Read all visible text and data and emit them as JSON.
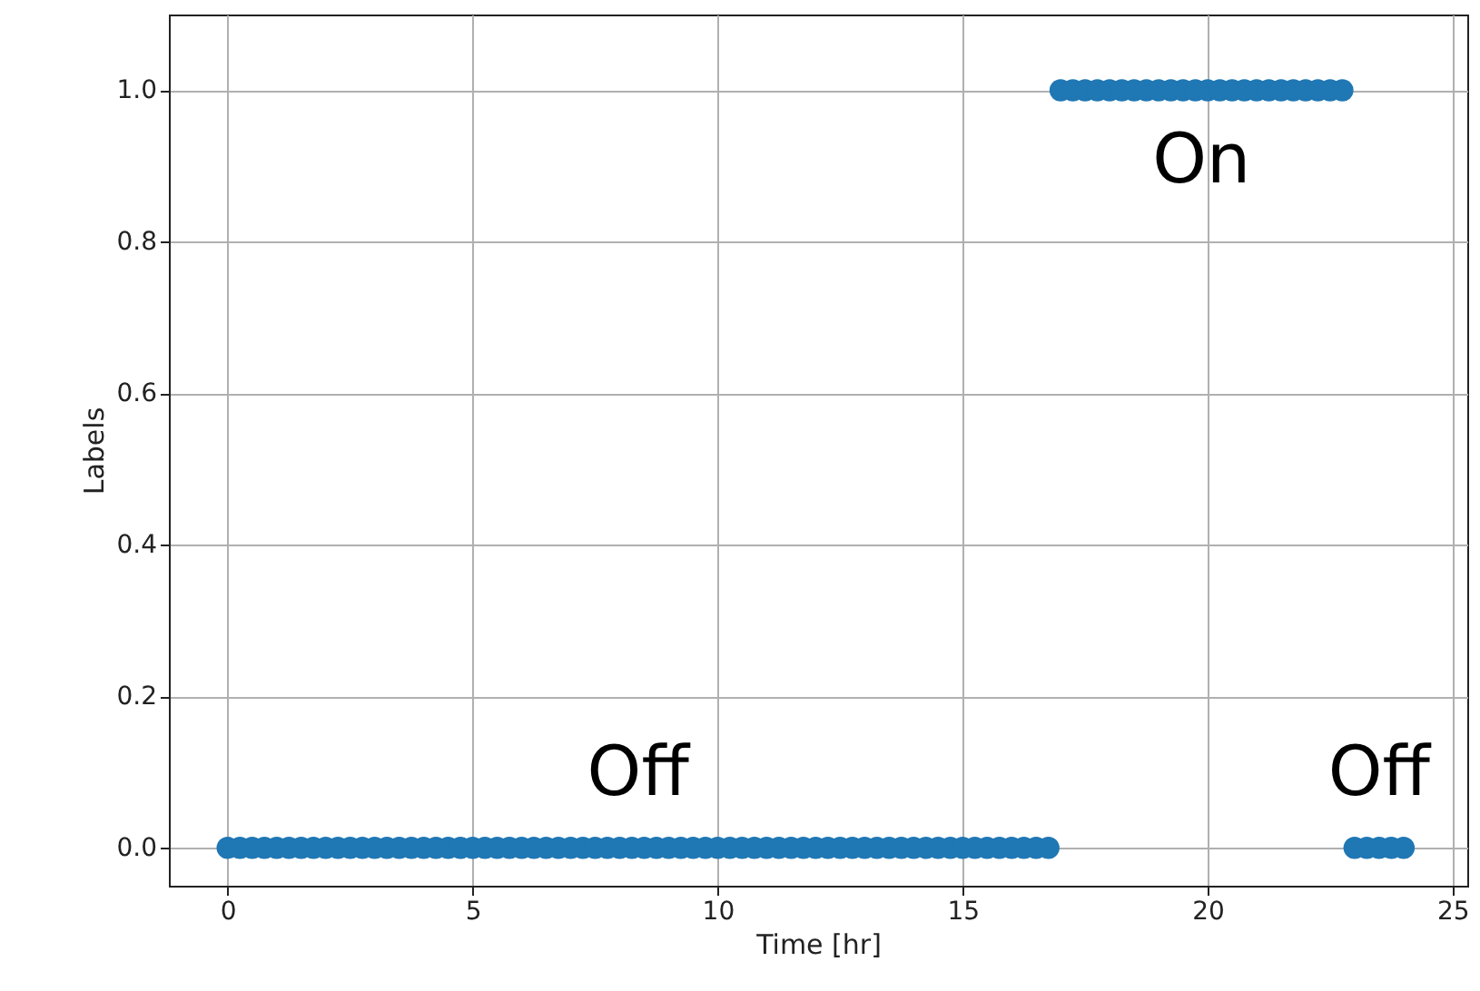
{
  "chart_data": {
    "type": "scatter",
    "xlabel": "Time [hr]",
    "ylabel": "Labels",
    "x": [
      0,
      0.25,
      0.5,
      0.75,
      1,
      1.25,
      1.5,
      1.75,
      2,
      2.25,
      2.5,
      2.75,
      3,
      3.25,
      3.5,
      3.75,
      4,
      4.25,
      4.5,
      4.75,
      5,
      5.25,
      5.5,
      5.75,
      6,
      6.25,
      6.5,
      6.75,
      7,
      7.25,
      7.5,
      7.75,
      8,
      8.25,
      8.5,
      8.75,
      9,
      9.25,
      9.5,
      9.75,
      10,
      10.25,
      10.5,
      10.75,
      11,
      11.25,
      11.5,
      11.75,
      12,
      12.25,
      12.5,
      12.75,
      13,
      13.25,
      13.5,
      13.75,
      14,
      14.25,
      14.5,
      14.75,
      15,
      15.25,
      15.5,
      15.75,
      16,
      16.25,
      16.5,
      16.75,
      17,
      17.25,
      17.5,
      17.75,
      18,
      18.25,
      18.5,
      18.75,
      19,
      19.25,
      19.5,
      19.75,
      20,
      20.25,
      20.5,
      20.75,
      21,
      21.25,
      21.5,
      21.75,
      22,
      22.25,
      22.5,
      22.75,
      23,
      23.25,
      23.5,
      23.75,
      24
    ],
    "series": [
      {
        "color": "#1f77b4",
        "values": [
          0,
          0,
          0,
          0,
          0,
          0,
          0,
          0,
          0,
          0,
          0,
          0,
          0,
          0,
          0,
          0,
          0,
          0,
          0,
          0,
          0,
          0,
          0,
          0,
          0,
          0,
          0,
          0,
          0,
          0,
          0,
          0,
          0,
          0,
          0,
          0,
          0,
          0,
          0,
          0,
          0,
          0,
          0,
          0,
          0,
          0,
          0,
          0,
          0,
          0,
          0,
          0,
          0,
          0,
          0,
          0,
          0,
          0,
          0,
          0,
          0,
          0,
          0,
          0,
          0,
          0,
          0,
          0,
          1,
          1,
          1,
          1,
          1,
          1,
          1,
          1,
          1,
          1,
          1,
          1,
          1,
          1,
          1,
          1,
          1,
          1,
          1,
          1,
          1,
          1,
          1,
          1,
          0,
          0,
          0,
          0,
          0
        ]
      }
    ],
    "xlim": [
      -1.2,
      25.3
    ],
    "ylim": [
      -0.05,
      1.1
    ],
    "xticks": [
      0,
      5,
      10,
      15,
      20,
      25
    ],
    "yticks": [
      {
        "value": 0,
        "label": "0.0"
      },
      {
        "value": 0.2,
        "label": "0.2"
      },
      {
        "value": 0.4,
        "label": "0.4"
      },
      {
        "value": 0.6,
        "label": "0.6"
      },
      {
        "value": 0.8,
        "label": "0.8"
      },
      {
        "value": 1,
        "label": "1.0"
      }
    ],
    "grid": true,
    "marker": "circle",
    "annotations": [
      "Off",
      "On",
      "Off"
    ]
  }
}
